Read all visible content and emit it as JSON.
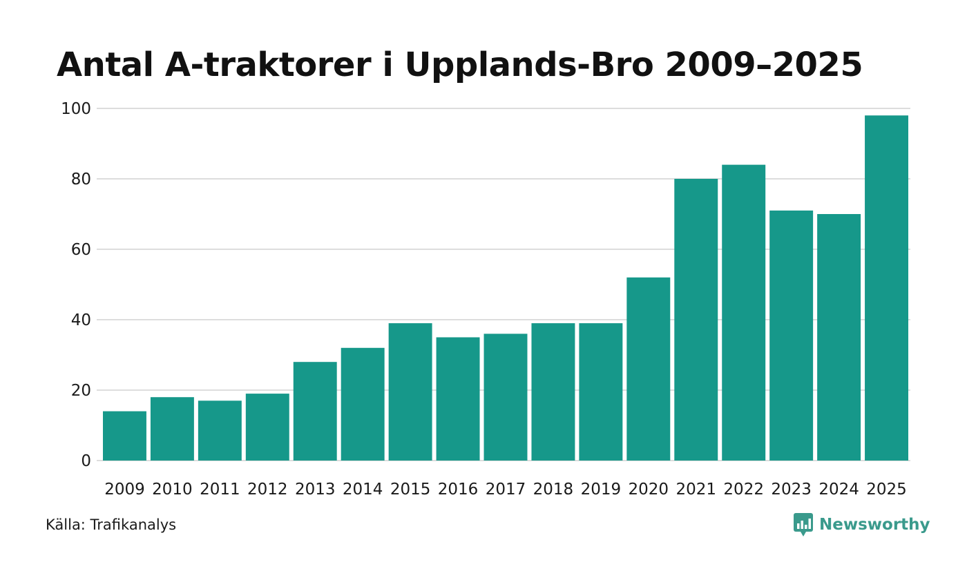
{
  "colors": {
    "bar": "#16988a",
    "grid": "#dddddd",
    "brand": "#3a9a8c"
  },
  "footer": {
    "source": "Källa: Trafikanalys",
    "brand_name": "Newsworthy",
    "brand_icon": "bar-chart-speech-bubble-icon"
  },
  "chart_data": {
    "type": "bar",
    "title": "Antal A-traktorer i Upplands-Bro 2009–2025",
    "xlabel": "",
    "ylabel": "",
    "categories": [
      "2009",
      "2010",
      "2011",
      "2012",
      "2013",
      "2014",
      "2015",
      "2016",
      "2017",
      "2018",
      "2019",
      "2020",
      "2021",
      "2022",
      "2023",
      "2024",
      "2025"
    ],
    "values": [
      14,
      18,
      17,
      19,
      28,
      32,
      39,
      35,
      36,
      39,
      39,
      52,
      80,
      84,
      71,
      70,
      98
    ],
    "ylim": [
      0,
      100
    ],
    "yticks": [
      0,
      20,
      40,
      60,
      80,
      100
    ],
    "grid": true,
    "legend": "none"
  }
}
